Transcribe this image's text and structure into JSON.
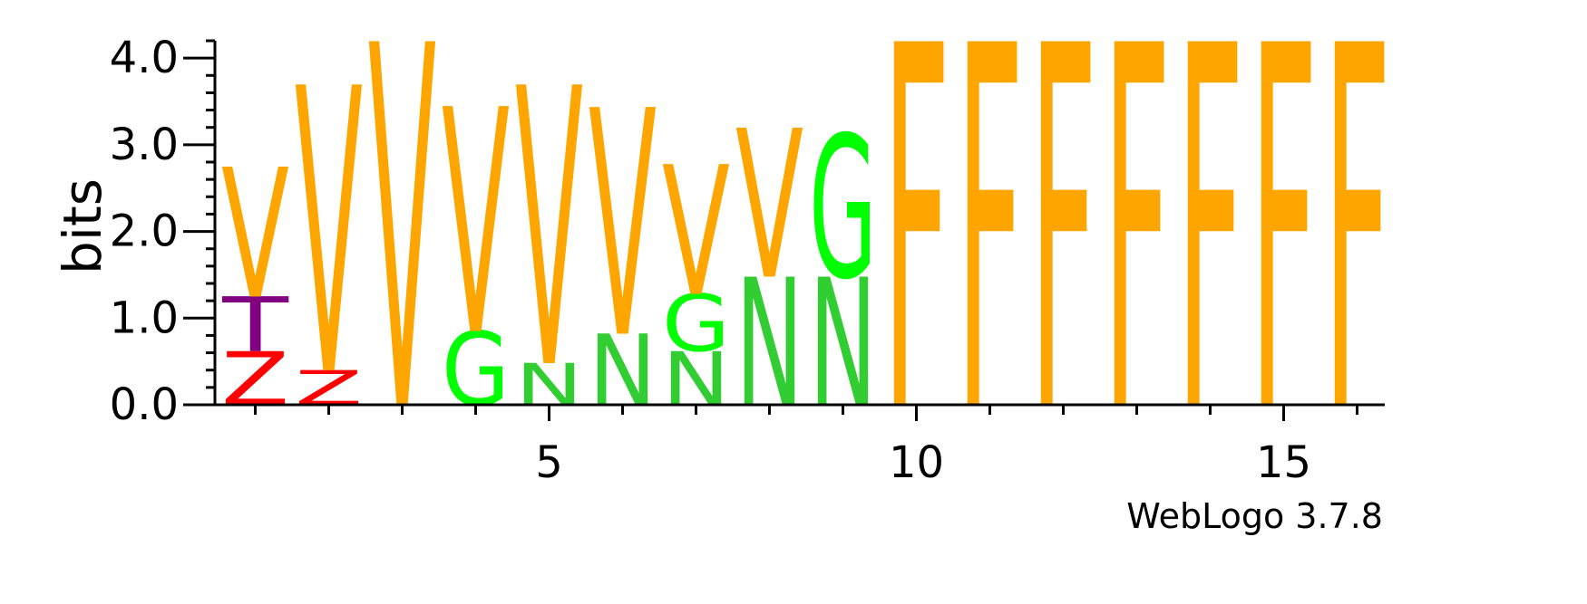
{
  "chart_data": {
    "type": "sequence-logo",
    "ylabel": "bits",
    "ylim": [
      0,
      4.2
    ],
    "y_ticks": [
      "0.0",
      "1.0",
      "2.0",
      "3.0",
      "4.0"
    ],
    "y_tick_values": [
      0,
      1,
      2,
      3,
      4
    ],
    "x_ticks": [
      "5",
      "10",
      "15"
    ],
    "x_tick_values": [
      5,
      10,
      15
    ],
    "positions": [
      1,
      2,
      3,
      4,
      5,
      6,
      7,
      8,
      9,
      10,
      11,
      12,
      13,
      14,
      15,
      16
    ],
    "colors": {
      "V": "#FFA500",
      "F": "#FFA500",
      "G": "#00FF00",
      "N": "#32CD32",
      "T": "#800080",
      "Z": "#FF0000"
    },
    "stacks": [
      [
        {
          "letter": "Z",
          "height": 0.62
        },
        {
          "letter": "T",
          "height": 0.63
        },
        {
          "letter": "V",
          "height": 1.5
        }
      ],
      [
        {
          "letter": "Z",
          "height": 0.4
        },
        {
          "letter": "V",
          "height": 3.3
        }
      ],
      [
        {
          "letter": "V",
          "height": 4.2
        }
      ],
      [
        {
          "letter": "G",
          "height": 0.85
        },
        {
          "letter": "V",
          "height": 2.6
        }
      ],
      [
        {
          "letter": "N",
          "height": 0.48
        },
        {
          "letter": "V",
          "height": 3.22
        }
      ],
      [
        {
          "letter": "N",
          "height": 0.82
        },
        {
          "letter": "V",
          "height": 2.62
        }
      ],
      [
        {
          "letter": "N",
          "height": 0.62
        },
        {
          "letter": "G",
          "height": 0.66
        },
        {
          "letter": "V",
          "height": 1.5
        }
      ],
      [
        {
          "letter": "N",
          "height": 1.48
        },
        {
          "letter": "V",
          "height": 1.72
        }
      ],
      [
        {
          "letter": "N",
          "height": 1.48
        },
        {
          "letter": "G",
          "height": 1.65
        }
      ],
      [
        {
          "letter": "F",
          "height": 4.2
        }
      ],
      [
        {
          "letter": "F",
          "height": 4.2
        }
      ],
      [
        {
          "letter": "F",
          "height": 4.2
        }
      ],
      [
        {
          "letter": "F",
          "height": 4.2
        }
      ],
      [
        {
          "letter": "F",
          "height": 4.2
        }
      ],
      [
        {
          "letter": "F",
          "height": 4.2
        }
      ],
      [
        {
          "letter": "F",
          "height": 4.2
        }
      ]
    ],
    "grid": false,
    "legend": "none"
  },
  "footer": {
    "version_label": "WebLogo 3.7.8"
  }
}
